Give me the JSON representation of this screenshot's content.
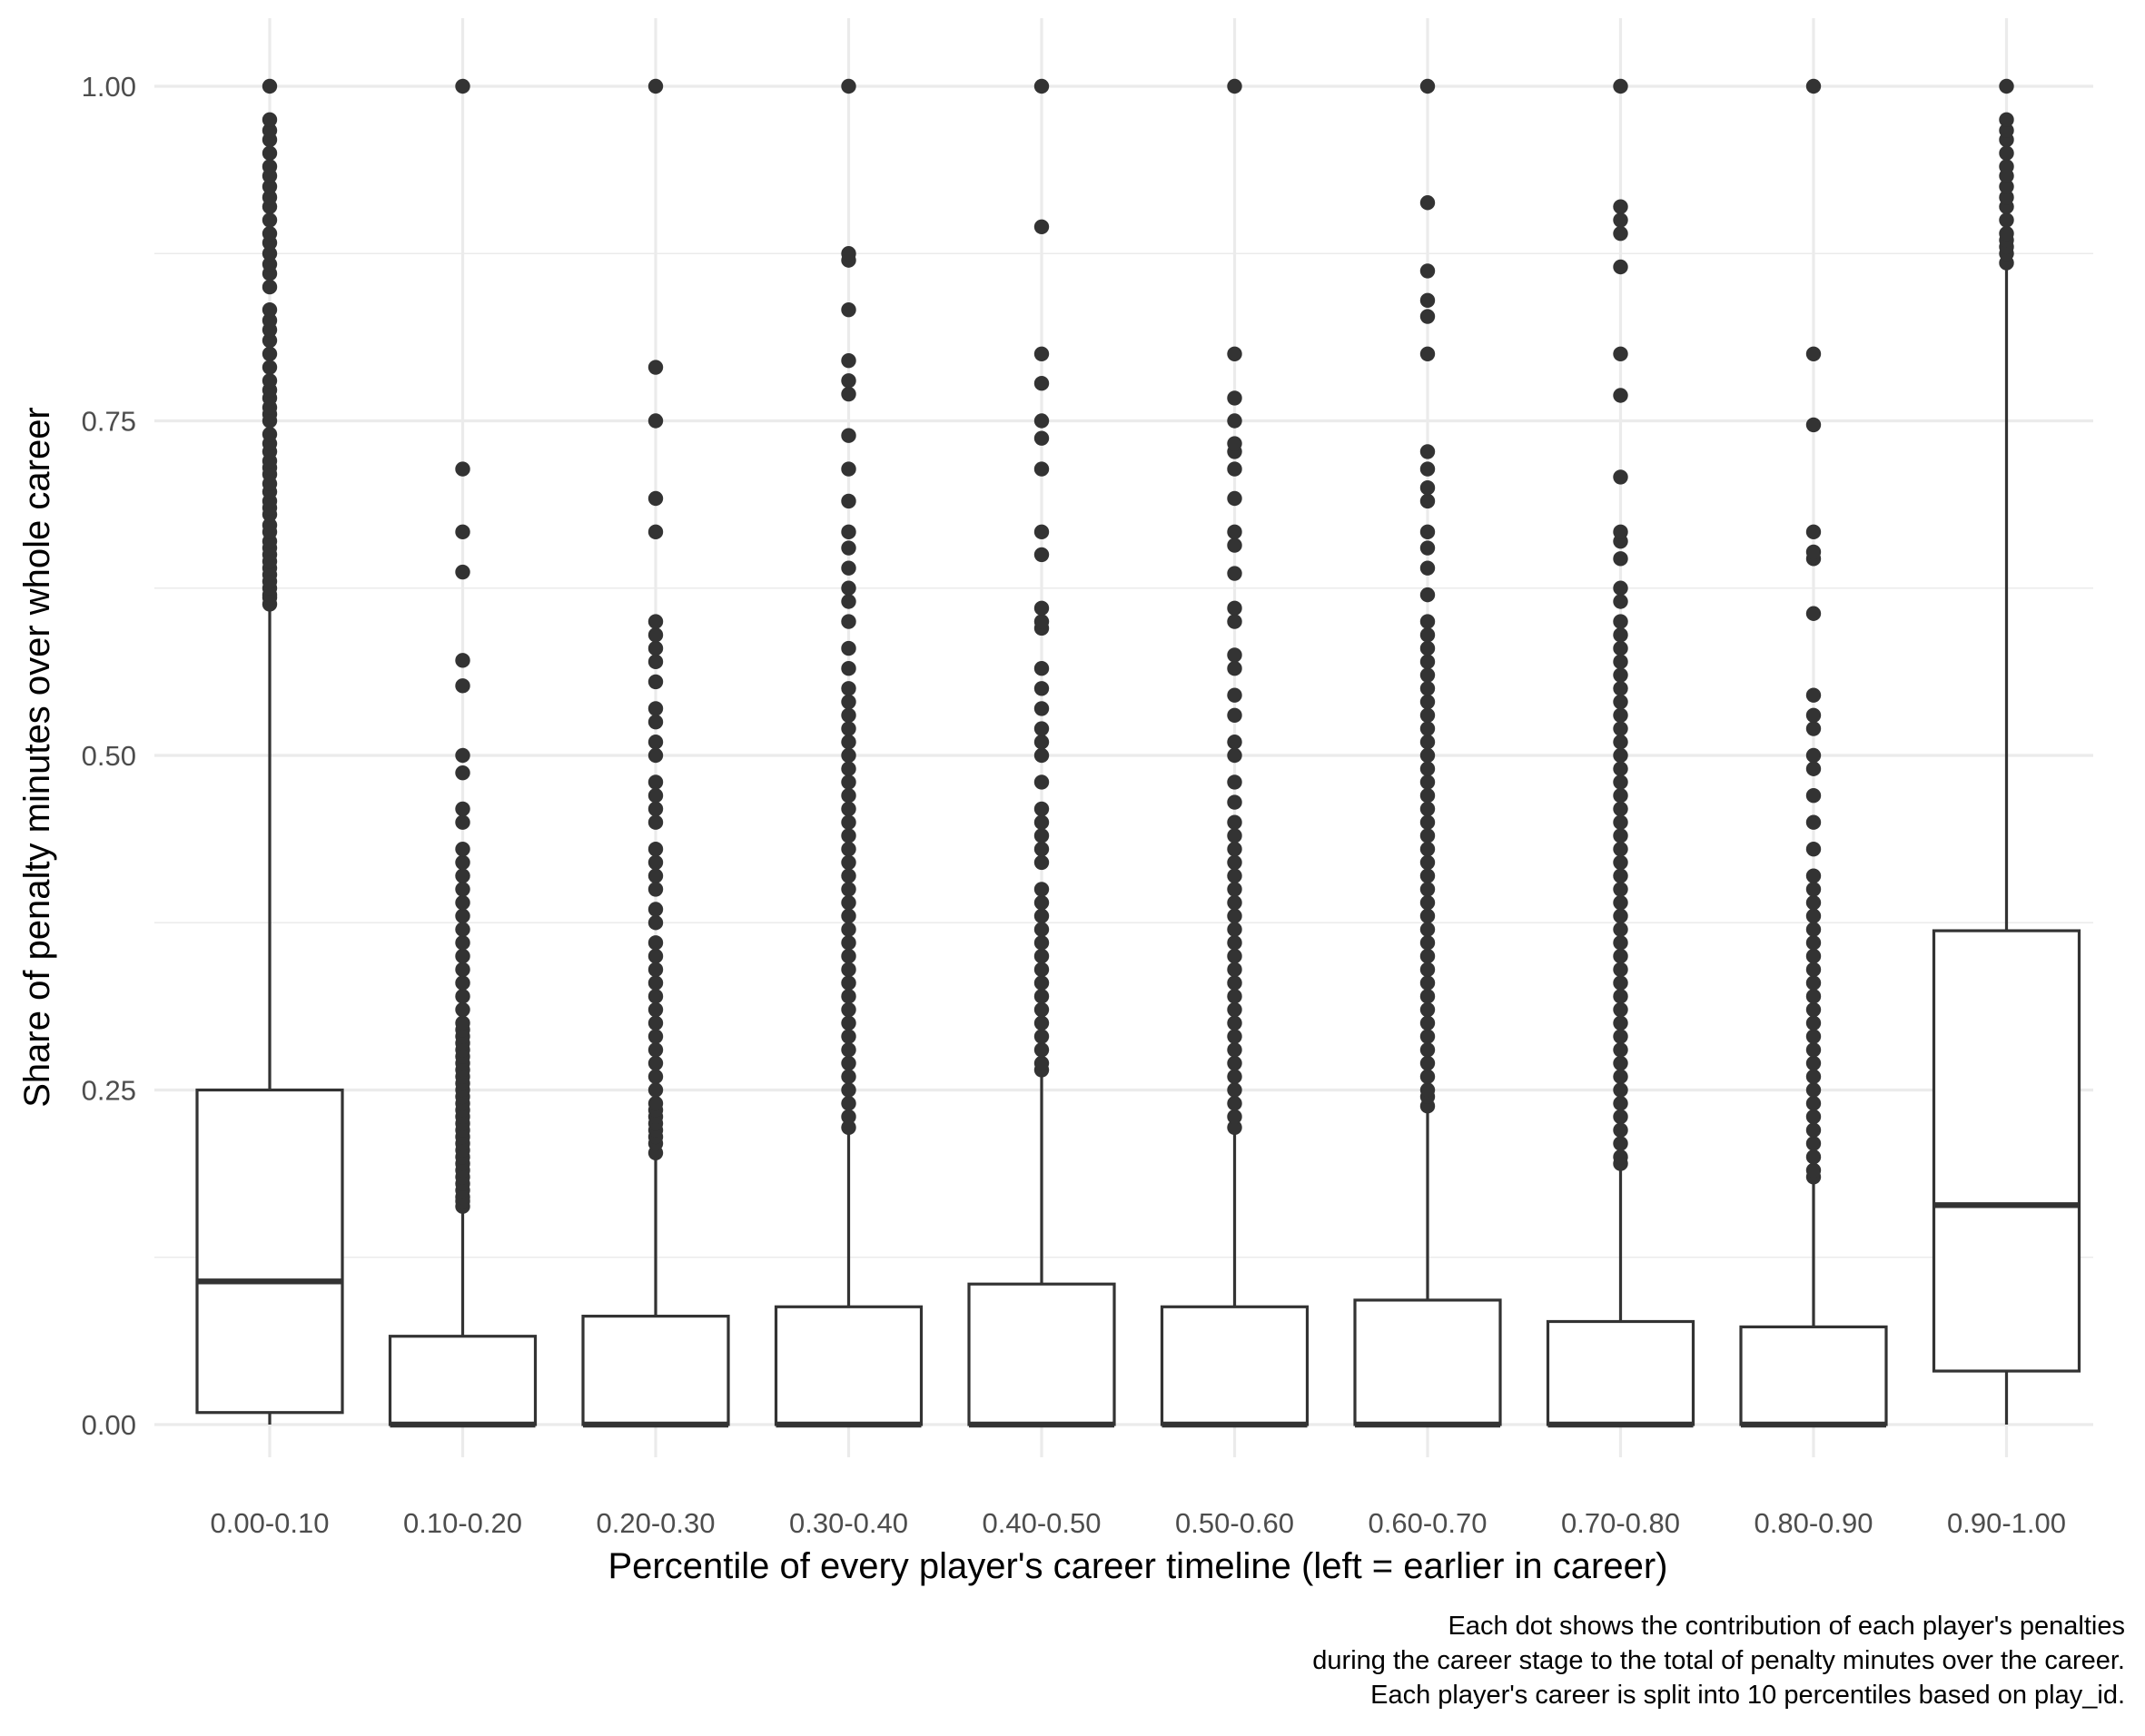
{
  "chart_data": {
    "type": "box",
    "title": "",
    "xlabel": "Percentile of every player's career timeline (left = earlier in career)",
    "ylabel": "Share of penalty minutes over whole career",
    "ylim": [
      -0.06,
      1.05
    ],
    "yticks": [
      0.0,
      0.25,
      0.5,
      0.75,
      1.0
    ],
    "ytick_labels": [
      "0.00",
      "0.25",
      "0.50",
      "0.75",
      "1.00"
    ],
    "grid": true,
    "legend": "none",
    "colors": {
      "box_fill": "#ffffff",
      "box_stroke": "#333333",
      "outlier": "#333333",
      "grid": "#ebebeb"
    },
    "categories": [
      "0.00-0.10",
      "0.10-0.20",
      "0.20-0.30",
      "0.30-0.40",
      "0.40-0.50",
      "0.50-0.60",
      "0.60-0.70",
      "0.70-0.80",
      "0.80-0.90",
      "0.90-1.00"
    ],
    "boxes": [
      {
        "category": "0.00-0.10",
        "min": 0.0,
        "q1": 0.009,
        "median": 0.107,
        "q3": 0.25,
        "max": 0.612,
        "outliers": [
          0.613,
          0.618,
          0.62,
          0.625,
          0.63,
          0.635,
          0.64,
          0.645,
          0.65,
          0.655,
          0.66,
          0.667,
          0.672,
          0.68,
          0.685,
          0.69,
          0.697,
          0.703,
          0.71,
          0.715,
          0.72,
          0.727,
          0.733,
          0.74,
          0.75,
          0.755,
          0.76,
          0.767,
          0.773,
          0.78,
          0.79,
          0.8,
          0.81,
          0.818,
          0.825,
          0.833,
          0.85,
          0.86,
          0.867,
          0.875,
          0.883,
          0.89,
          0.9,
          0.91,
          0.917,
          0.925,
          0.933,
          0.94,
          0.95,
          0.96,
          0.967,
          0.975,
          1.0
        ]
      },
      {
        "category": "0.10-0.20",
        "min": 0.0,
        "q1": 0.0,
        "median": 0.0,
        "q3": 0.066,
        "max": 0.16,
        "outliers": [
          0.163,
          0.167,
          0.17,
          0.175,
          0.18,
          0.185,
          0.19,
          0.195,
          0.2,
          0.205,
          0.21,
          0.215,
          0.22,
          0.225,
          0.23,
          0.235,
          0.24,
          0.245,
          0.25,
          0.255,
          0.26,
          0.265,
          0.27,
          0.275,
          0.28,
          0.285,
          0.29,
          0.295,
          0.3,
          0.31,
          0.32,
          0.33,
          0.34,
          0.35,
          0.36,
          0.37,
          0.38,
          0.39,
          0.4,
          0.41,
          0.42,
          0.43,
          0.45,
          0.46,
          0.487,
          0.5,
          0.552,
          0.571,
          0.637,
          0.667,
          0.714,
          1.0
        ]
      },
      {
        "category": "0.20-0.30",
        "min": 0.0,
        "q1": 0.0,
        "median": 0.0,
        "q3": 0.081,
        "max": 0.2,
        "outliers": [
          0.203,
          0.21,
          0.215,
          0.22,
          0.225,
          0.23,
          0.235,
          0.24,
          0.25,
          0.26,
          0.27,
          0.28,
          0.29,
          0.3,
          0.31,
          0.32,
          0.33,
          0.34,
          0.35,
          0.36,
          0.375,
          0.385,
          0.4,
          0.41,
          0.42,
          0.43,
          0.45,
          0.46,
          0.47,
          0.48,
          0.5,
          0.51,
          0.525,
          0.535,
          0.555,
          0.57,
          0.58,
          0.59,
          0.6,
          0.667,
          0.692,
          0.75,
          0.79,
          1.0
        ]
      },
      {
        "category": "0.30-0.40",
        "min": 0.0,
        "q1": 0.0,
        "median": 0.0,
        "q3": 0.088,
        "max": 0.22,
        "outliers": [
          0.222,
          0.23,
          0.24,
          0.25,
          0.26,
          0.27,
          0.28,
          0.29,
          0.3,
          0.31,
          0.32,
          0.33,
          0.34,
          0.35,
          0.36,
          0.37,
          0.38,
          0.39,
          0.4,
          0.41,
          0.42,
          0.43,
          0.44,
          0.45,
          0.46,
          0.47,
          0.48,
          0.49,
          0.5,
          0.51,
          0.52,
          0.53,
          0.54,
          0.55,
          0.565,
          0.58,
          0.6,
          0.615,
          0.625,
          0.64,
          0.655,
          0.667,
          0.69,
          0.714,
          0.739,
          0.77,
          0.78,
          0.795,
          0.833,
          0.87,
          0.875,
          1.0
        ]
      },
      {
        "category": "0.40-0.50",
        "min": 0.0,
        "q1": 0.0,
        "median": 0.0,
        "q3": 0.105,
        "max": 0.262,
        "outliers": [
          0.265,
          0.27,
          0.28,
          0.29,
          0.3,
          0.31,
          0.32,
          0.33,
          0.34,
          0.35,
          0.36,
          0.37,
          0.38,
          0.39,
          0.4,
          0.42,
          0.43,
          0.44,
          0.45,
          0.46,
          0.48,
          0.5,
          0.51,
          0.52,
          0.535,
          0.55,
          0.565,
          0.595,
          0.6,
          0.61,
          0.65,
          0.667,
          0.714,
          0.737,
          0.75,
          0.778,
          0.8,
          0.895,
          1.0
        ]
      },
      {
        "category": "0.50-0.60",
        "min": 0.0,
        "q1": 0.0,
        "median": 0.0,
        "q3": 0.088,
        "max": 0.22,
        "outliers": [
          0.222,
          0.23,
          0.24,
          0.25,
          0.26,
          0.27,
          0.28,
          0.29,
          0.3,
          0.31,
          0.32,
          0.33,
          0.34,
          0.35,
          0.36,
          0.37,
          0.38,
          0.39,
          0.4,
          0.41,
          0.42,
          0.43,
          0.44,
          0.45,
          0.465,
          0.48,
          0.5,
          0.51,
          0.53,
          0.545,
          0.565,
          0.575,
          0.6,
          0.61,
          0.636,
          0.657,
          0.667,
          0.692,
          0.714,
          0.727,
          0.733,
          0.75,
          0.767,
          0.8,
          1.0
        ]
      },
      {
        "category": "0.60-0.70",
        "min": 0.0,
        "q1": 0.0,
        "median": 0.0,
        "q3": 0.093,
        "max": 0.235,
        "outliers": [
          0.238,
          0.245,
          0.25,
          0.26,
          0.27,
          0.28,
          0.29,
          0.3,
          0.31,
          0.32,
          0.33,
          0.34,
          0.35,
          0.36,
          0.37,
          0.38,
          0.39,
          0.4,
          0.41,
          0.42,
          0.43,
          0.44,
          0.45,
          0.46,
          0.47,
          0.48,
          0.49,
          0.5,
          0.51,
          0.52,
          0.53,
          0.54,
          0.55,
          0.56,
          0.57,
          0.58,
          0.59,
          0.6,
          0.62,
          0.64,
          0.655,
          0.667,
          0.69,
          0.7,
          0.714,
          0.727,
          0.8,
          0.828,
          0.84,
          0.862,
          0.913,
          1.0
        ]
      },
      {
        "category": "0.70-0.80",
        "min": 0.0,
        "q1": 0.0,
        "median": 0.0,
        "q3": 0.077,
        "max": 0.192,
        "outliers": [
          0.195,
          0.2,
          0.21,
          0.22,
          0.23,
          0.24,
          0.25,
          0.26,
          0.27,
          0.28,
          0.29,
          0.3,
          0.31,
          0.32,
          0.33,
          0.34,
          0.35,
          0.36,
          0.37,
          0.38,
          0.39,
          0.4,
          0.41,
          0.42,
          0.43,
          0.44,
          0.45,
          0.46,
          0.47,
          0.48,
          0.49,
          0.5,
          0.51,
          0.52,
          0.53,
          0.54,
          0.55,
          0.56,
          0.57,
          0.58,
          0.59,
          0.6,
          0.615,
          0.625,
          0.647,
          0.66,
          0.667,
          0.708,
          0.769,
          0.8,
          0.865,
          0.89,
          0.9,
          0.91,
          1.0
        ]
      },
      {
        "category": "0.80-0.90",
        "min": 0.0,
        "q1": 0.0,
        "median": 0.0,
        "q3": 0.073,
        "max": 0.182,
        "outliers": [
          0.185,
          0.19,
          0.2,
          0.21,
          0.22,
          0.23,
          0.24,
          0.25,
          0.26,
          0.27,
          0.28,
          0.29,
          0.3,
          0.31,
          0.32,
          0.33,
          0.34,
          0.35,
          0.36,
          0.37,
          0.38,
          0.39,
          0.4,
          0.41,
          0.43,
          0.45,
          0.47,
          0.49,
          0.5,
          0.52,
          0.53,
          0.545,
          0.606,
          0.647,
          0.652,
          0.667,
          0.747,
          0.8,
          1.0
        ]
      },
      {
        "category": "0.90-1.00",
        "min": 0.0,
        "q1": 0.04,
        "median": 0.164,
        "q3": 0.369,
        "max": 0.865,
        "outliers": [
          0.868,
          0.875,
          0.88,
          0.885,
          0.89,
          0.9,
          0.91,
          0.917,
          0.925,
          0.933,
          0.94,
          0.95,
          0.96,
          0.967,
          0.975,
          1.0
        ]
      }
    ]
  },
  "caption": [
    "Each dot shows the contribution of each player's penalties",
    "during the career stage to the total of penalty minutes over the career.",
    "Each player's career is split into 10 percentiles based on play_id."
  ]
}
